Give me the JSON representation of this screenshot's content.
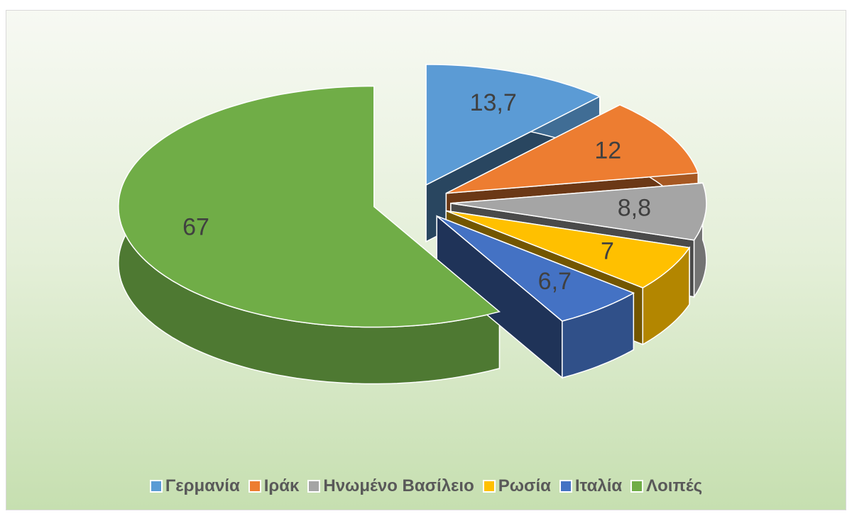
{
  "chart_data": {
    "type": "pie",
    "categories": [
      "Γερμανία",
      "Ιράκ",
      "Ηνωμένο Βασίλειο",
      "Ρωσία",
      "Ιταλία",
      "Λοιπές"
    ],
    "values": [
      13.7,
      12,
      8.8,
      7,
      6.7,
      67
    ],
    "value_labels": [
      "13,7",
      "12",
      "8,8",
      "7",
      "6,7",
      "67"
    ],
    "colors": [
      "#5b9bd5",
      "#ed7d31",
      "#a5a5a5",
      "#ffc000",
      "#4472c4",
      "#70ad47"
    ],
    "legend": "bottom"
  }
}
